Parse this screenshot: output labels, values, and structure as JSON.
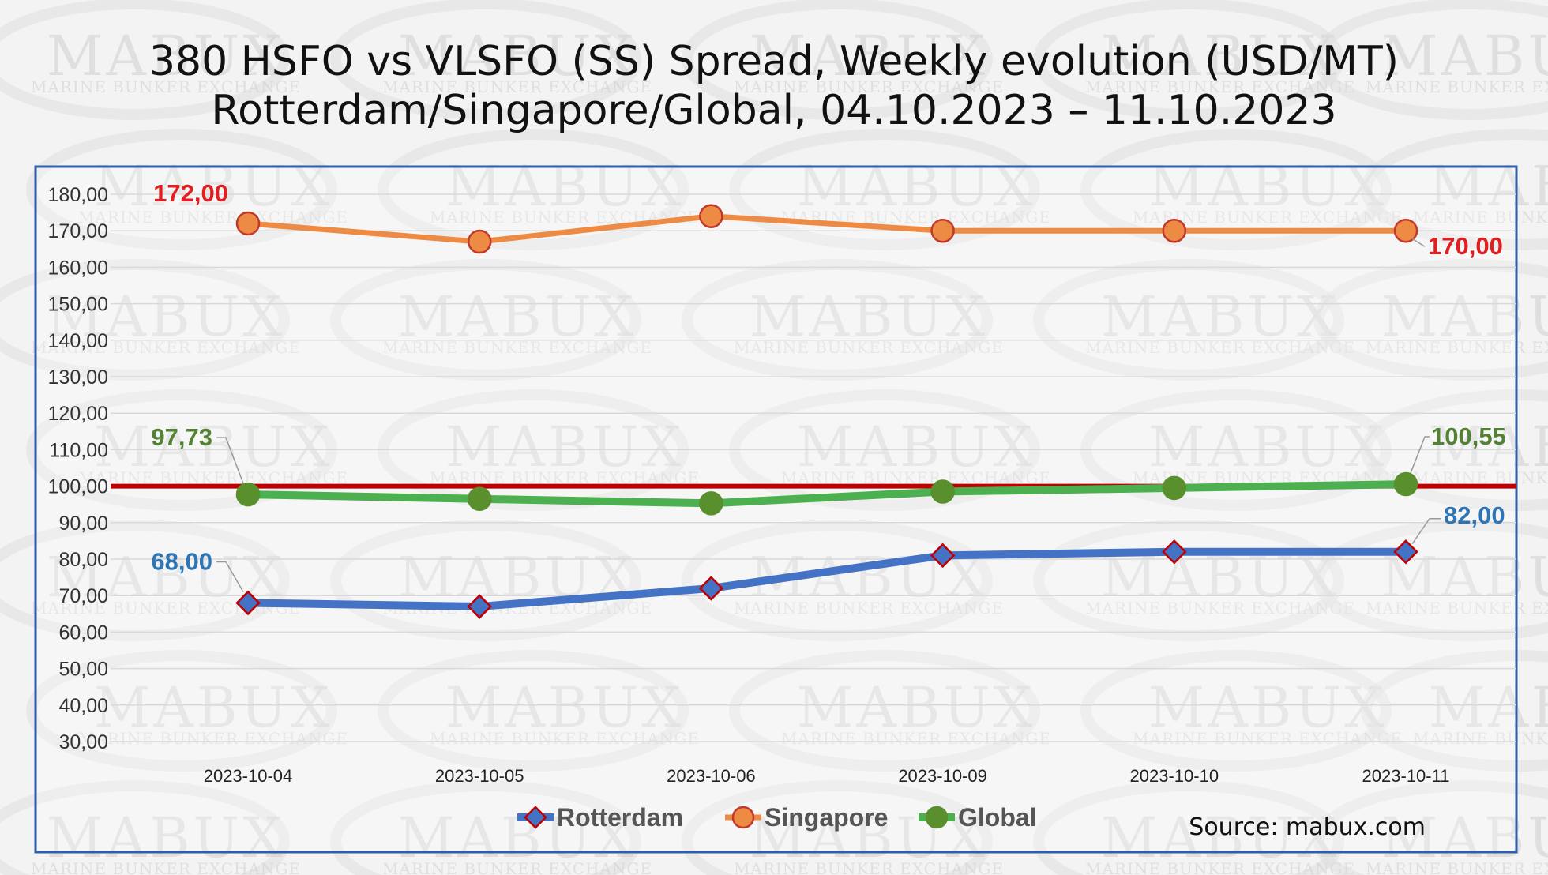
{
  "title_line1": "380 HSFO vs VLSFO (SS) Spread, Weekly evolution (USD/MT)",
  "title_line2": "Rotterdam/Singapore/Global, 04.10.2023 – 11.10.2023",
  "source": "Source: mabux.com",
  "watermark": {
    "brand": "MABUX",
    "sub": "MARINE BUNKER EXCHANGE"
  },
  "colors": {
    "rotterdam": "#4472c4",
    "singapore": "#ed8b44",
    "global_line": "#4caf50",
    "global_marker": "#5a8f2e",
    "reference_line": "#c00000",
    "label_red": "#e02020",
    "label_blue": "#2e75b6",
    "label_green": "#548235",
    "frame": "#2e5fa8"
  },
  "chart_data": {
    "type": "line",
    "categories": [
      "2023-10-04",
      "2023-10-05",
      "2023-10-06",
      "2023-10-09",
      "2023-10-10",
      "2023-10-11"
    ],
    "series": [
      {
        "name": "Rotterdam",
        "marker": "diamond",
        "values": [
          68,
          67,
          72,
          81,
          82,
          82
        ]
      },
      {
        "name": "Singapore",
        "marker": "circle",
        "values": [
          172,
          167,
          174,
          170,
          170,
          170
        ]
      },
      {
        "name": "Global",
        "marker": "circle",
        "values": [
          97.73,
          96.5,
          95.3,
          98.5,
          99.5,
          100.55
        ]
      }
    ],
    "reference_line": 100,
    "ylim": [
      30,
      180
    ],
    "ystep": 10,
    "ytick_labels": [
      "30,00",
      "40,00",
      "50,00",
      "60,00",
      "70,00",
      "80,00",
      "90,00",
      "100,00",
      "110,00",
      "120,00",
      "130,00",
      "140,00",
      "150,00",
      "160,00",
      "170,00",
      "180,00"
    ],
    "grid": true,
    "legend": "bottom",
    "annotations": [
      {
        "series": "Singapore",
        "index": 0,
        "text": "172,00"
      },
      {
        "series": "Singapore",
        "index": 5,
        "text": "170,00"
      },
      {
        "series": "Global",
        "index": 0,
        "text": "97,73"
      },
      {
        "series": "Global",
        "index": 5,
        "text": "100,55"
      },
      {
        "series": "Rotterdam",
        "index": 0,
        "text": "68,00"
      },
      {
        "series": "Rotterdam",
        "index": 5,
        "text": "82,00"
      }
    ]
  }
}
